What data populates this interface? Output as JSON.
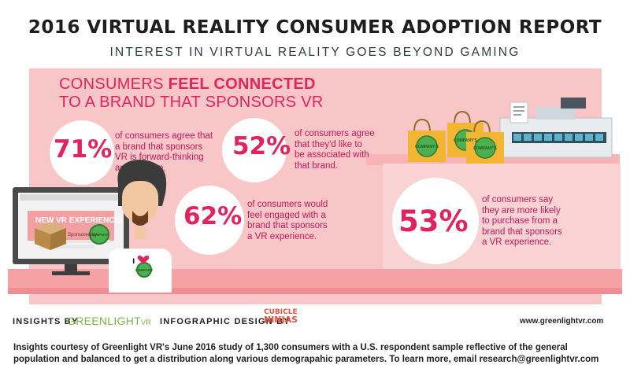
{
  "header": {
    "title": "2016 VIRTUAL REALITY CONSUMER ADOPTION REPORT",
    "subtitle": "INTEREST IN VIRTUAL REALITY GOES BEYOND GAMING"
  },
  "headline": {
    "line1_prefix": "CONSUMERS ",
    "line1_bold": "FEEL CONNECTED",
    "line2": "TO A BRAND THAT SPONSORS VR"
  },
  "stats": [
    {
      "value": "71%",
      "lines": [
        "of consumers agree that",
        "a brand that sponsors",
        "VR is forward-thinking",
        "and modern."
      ]
    },
    {
      "value": "52%",
      "lines": [
        "of consumers agree",
        "that they'd like to",
        "be associated with",
        "that brand."
      ]
    },
    {
      "value": "62%",
      "lines": [
        "of consumers would",
        "feel engaged with a",
        "brand that sponsors",
        "a VR experience."
      ]
    },
    {
      "value": "53%",
      "lines": [
        "of consumers say",
        "they are more likely",
        "to purchase from a",
        "brand that sponsors",
        "a VR experience."
      ]
    }
  ],
  "illustration": {
    "monitor_banner": "NEW VR EXPERIENCE!",
    "sponsored": "Sponsored by",
    "badge": "COMPANY",
    "bag_label": "COMPANY'S",
    "shirt_text": "I",
    "shirt_badge": "COMPANY"
  },
  "footer": {
    "insights_label": "INSIGHTS BY",
    "greenlight": "GREENLIGHT",
    "greenlight_vr": "VR",
    "design_label": "INFOGRAPHIC DESIGN BY",
    "ninjas_line1": "CUBICLE",
    "ninjas_line2": "NINJAS",
    "website": "www.greenlightvr.com"
  },
  "note": {
    "line1": "Insights courtesy of Greenlight VR's June 2016 study of 1,300 consumers with a U.S. respondent sample reflective of the general",
    "line2": "population and balanced to get a distribution along various demograpahic parameters. To learn more, email research@greenlightvr.com"
  },
  "colors": {
    "accent": "#e0245e",
    "panel": "#f8c6c7",
    "greenlight": "#7cb342"
  }
}
